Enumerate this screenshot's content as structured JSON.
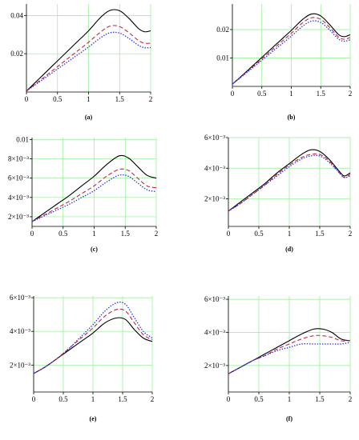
{
  "chart_data": [
    {
      "caption": "(a)",
      "type": "line",
      "xlim": [
        0,
        2
      ],
      "ylim": [
        0,
        0.046
      ],
      "xticks": [
        0,
        0.5,
        1,
        1.5,
        2
      ],
      "xtick_labels": [
        "0",
        "0.5",
        "1",
        "1.5",
        "2"
      ],
      "yticks": [
        0.02,
        0.04
      ],
      "ytick_labels": [
        "0.02",
        "0.04"
      ],
      "grid": true,
      "x": [
        0,
        0.2,
        0.4,
        0.6,
        0.8,
        1.0,
        1.2,
        1.35,
        1.5,
        1.65,
        1.8,
        1.9,
        2.0
      ],
      "series": [
        {
          "color": "#000000",
          "dash": "solid",
          "values": [
            0.0005,
            0.0068,
            0.0131,
            0.0194,
            0.0257,
            0.032,
            0.0392,
            0.0427,
            0.0425,
            0.0385,
            0.0333,
            0.0315,
            0.032
          ]
        },
        {
          "color": "#c0254f",
          "dash": "dashed",
          "values": [
            0.0005,
            0.0056,
            0.0107,
            0.0158,
            0.0209,
            0.026,
            0.0315,
            0.0345,
            0.0342,
            0.031,
            0.027,
            0.0255,
            0.0255
          ]
        },
        {
          "color": "#1f2fe0",
          "dash": "dotted",
          "values": [
            0.0005,
            0.0051,
            0.0097,
            0.0143,
            0.0189,
            0.0235,
            0.0285,
            0.031,
            0.0308,
            0.028,
            0.0245,
            0.0232,
            0.0232
          ]
        }
      ]
    },
    {
      "caption": "(b)",
      "type": "line",
      "xlim": [
        0,
        2
      ],
      "ylim": [
        0,
        0.029
      ],
      "xticks": [
        0,
        0.5,
        1,
        1.5,
        2
      ],
      "xtick_labels": [
        "0",
        "0.5",
        "1",
        "1.5",
        "2"
      ],
      "yticks": [
        0.01,
        0.02
      ],
      "ytick_labels": [
        "0.01",
        "0.02"
      ],
      "grid": true,
      "x": [
        0,
        0.2,
        0.4,
        0.6,
        0.8,
        1.0,
        1.2,
        1.35,
        1.5,
        1.65,
        1.8,
        1.9,
        2.0
      ],
      "series": [
        {
          "color": "#000000",
          "dash": "solid",
          "values": [
            0.0008,
            0.0045,
            0.0083,
            0.0121,
            0.0159,
            0.0197,
            0.0237,
            0.0255,
            0.0248,
            0.0218,
            0.0183,
            0.0175,
            0.0182
          ]
        },
        {
          "color": "#c0254f",
          "dash": "dashed",
          "values": [
            0.0008,
            0.0043,
            0.0079,
            0.0115,
            0.0151,
            0.0187,
            0.0225,
            0.0242,
            0.0236,
            0.0208,
            0.0174,
            0.0166,
            0.0172
          ]
        },
        {
          "color": "#1f2fe0",
          "dash": "dotted",
          "values": [
            0.0008,
            0.0041,
            0.0075,
            0.0109,
            0.0143,
            0.0177,
            0.0213,
            0.023,
            0.0225,
            0.0199,
            0.0167,
            0.0159,
            0.0164
          ]
        }
      ]
    },
    {
      "caption": "(c)",
      "type": "line",
      "xlim": [
        0,
        2
      ],
      "ylim": [
        0.001,
        0.0102
      ],
      "xticks": [
        0,
        0.5,
        1,
        1.5,
        2
      ],
      "xtick_labels": [
        "0",
        "0.5",
        "1",
        "1.5",
        "2"
      ],
      "yticks": [
        0.002,
        0.004,
        0.006,
        0.008,
        0.01
      ],
      "ytick_labels": [
        "2×10⁻³",
        "4×10⁻³",
        "6×10⁻³",
        "8×10⁻³",
        "0.01"
      ],
      "grid": true,
      "x": [
        0,
        0.2,
        0.4,
        0.6,
        0.8,
        1.0,
        1.2,
        1.4,
        1.55,
        1.7,
        1.85,
        2.0
      ],
      "series": [
        {
          "color": "#000000",
          "dash": "solid",
          "values": [
            0.0015,
            0.0024,
            0.0033,
            0.0042,
            0.0052,
            0.0062,
            0.0074,
            0.0083,
            0.0081,
            0.0072,
            0.0063,
            0.006
          ]
        },
        {
          "color": "#c0254f",
          "dash": "dashed",
          "values": [
            0.0015,
            0.0022,
            0.0029,
            0.0036,
            0.0044,
            0.0052,
            0.0062,
            0.0069,
            0.0068,
            0.006,
            0.0052,
            0.005
          ]
        },
        {
          "color": "#1f2fe0",
          "dash": "dotted",
          "values": [
            0.0015,
            0.0021,
            0.0027,
            0.0033,
            0.004,
            0.0047,
            0.0056,
            0.0063,
            0.0062,
            0.0055,
            0.0048,
            0.0046
          ]
        }
      ]
    },
    {
      "caption": "(d)",
      "type": "line",
      "xlim": [
        0,
        2
      ],
      "ylim": [
        0.0002,
        0.006
      ],
      "xticks": [
        0,
        0.5,
        1,
        1.5,
        2
      ],
      "xtick_labels": [
        "0",
        "0.5",
        "1",
        "1.5",
        "2"
      ],
      "yticks": [
        0.002,
        0.004,
        0.006
      ],
      "ytick_labels": [
        "2×10⁻³",
        "4×10⁻³",
        "6×10⁻³"
      ],
      "grid": true,
      "x": [
        0,
        0.2,
        0.4,
        0.6,
        0.8,
        1.0,
        1.2,
        1.35,
        1.5,
        1.65,
        1.8,
        1.9,
        2.0
      ],
      "series": [
        {
          "color": "#000000",
          "dash": "solid",
          "values": [
            0.0012,
            0.0018,
            0.0024,
            0.003,
            0.0037,
            0.0043,
            0.0049,
            0.0052,
            0.0051,
            0.0046,
            0.0039,
            0.0035,
            0.0037
          ]
        },
        {
          "color": "#c0254f",
          "dash": "dashed",
          "values": [
            0.0012,
            0.0017,
            0.0023,
            0.0029,
            0.0036,
            0.0042,
            0.0047,
            0.0049,
            0.0049,
            0.0045,
            0.0038,
            0.0034,
            0.0036
          ]
        },
        {
          "color": "#1f2fe0",
          "dash": "dotted",
          "values": [
            0.0012,
            0.0017,
            0.0023,
            0.0029,
            0.0035,
            0.0041,
            0.0046,
            0.0048,
            0.0048,
            0.0044,
            0.0038,
            0.0034,
            0.0035
          ]
        }
      ]
    },
    {
      "caption": "(e)",
      "type": "line",
      "xlim": [
        0,
        2
      ],
      "ylim": [
        0.0004,
        0.0061
      ],
      "xticks": [
        0,
        0.5,
        1,
        1.5,
        2
      ],
      "xtick_labels": [
        "0",
        "0.5",
        "1",
        "1.5",
        "2"
      ],
      "yticks": [
        0.002,
        0.004,
        0.006
      ],
      "ytick_labels": [
        "2×10⁻³",
        "4×10⁻³",
        "6×10⁻³"
      ],
      "grid": true,
      "x": [
        0,
        0.2,
        0.4,
        0.6,
        0.8,
        1.0,
        1.2,
        1.4,
        1.55,
        1.7,
        1.85,
        2.0
      ],
      "series": [
        {
          "color": "#000000",
          "dash": "solid",
          "values": [
            0.0015,
            0.0019,
            0.0024,
            0.0029,
            0.0034,
            0.0039,
            0.0045,
            0.0048,
            0.0047,
            0.0041,
            0.0036,
            0.0034
          ]
        },
        {
          "color": "#c0254f",
          "dash": "dashed",
          "values": [
            0.0015,
            0.0019,
            0.0024,
            0.003,
            0.0036,
            0.0042,
            0.0049,
            0.0053,
            0.0052,
            0.0045,
            0.0038,
            0.0035
          ]
        },
        {
          "color": "#1f2fe0",
          "dash": "dotted",
          "values": [
            0.0015,
            0.0019,
            0.0024,
            0.003,
            0.0037,
            0.0044,
            0.0052,
            0.0057,
            0.0056,
            0.0048,
            0.004,
            0.0036
          ]
        }
      ]
    },
    {
      "caption": "(f)",
      "type": "line",
      "xlim": [
        0,
        2
      ],
      "ylim": [
        0.0004,
        0.0062
      ],
      "xticks": [
        0,
        0.5,
        1,
        1.5,
        2
      ],
      "xtick_labels": [
        "0",
        "0.5",
        "1",
        "1.5",
        "2"
      ],
      "yticks": [
        0.002,
        0.004,
        0.006
      ],
      "ytick_labels": [
        "2×10⁻³",
        "4×10⁻³",
        "6×10⁻³"
      ],
      "grid": true,
      "x": [
        0,
        0.2,
        0.4,
        0.6,
        0.8,
        1.0,
        1.2,
        1.4,
        1.55,
        1.7,
        1.85,
        2.0
      ],
      "series": [
        {
          "color": "#000000",
          "dash": "solid",
          "values": [
            0.0015,
            0.0019,
            0.0023,
            0.0027,
            0.0031,
            0.0035,
            0.0039,
            0.0042,
            0.0042,
            0.004,
            0.0036,
            0.0035
          ]
        },
        {
          "color": "#c0254f",
          "dash": "dashed",
          "values": [
            0.0015,
            0.0019,
            0.0023,
            0.0026,
            0.003,
            0.0033,
            0.0036,
            0.0038,
            0.0038,
            0.0037,
            0.0035,
            0.0035
          ]
        },
        {
          "color": "#1f2fe0",
          "dash": "dotted",
          "values": [
            0.0015,
            0.0019,
            0.0023,
            0.0026,
            0.0029,
            0.0031,
            0.0033,
            0.0033,
            0.0033,
            0.0033,
            0.0033,
            0.0034
          ]
        }
      ]
    }
  ]
}
